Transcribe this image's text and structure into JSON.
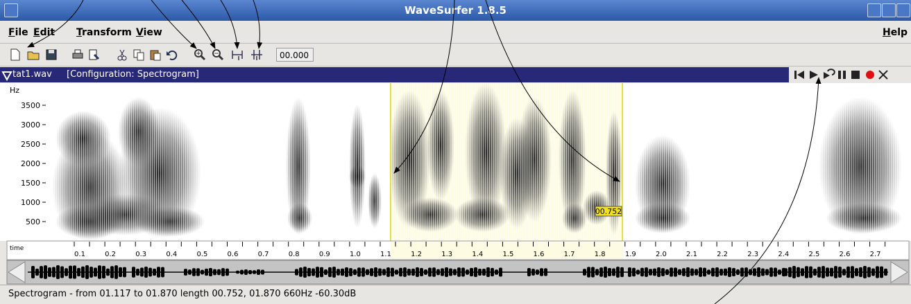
{
  "window": {
    "title": "WaveSurfer 1.8.5"
  },
  "menu": {
    "items": [
      "File",
      "Edit",
      "Transform",
      "View"
    ],
    "help": "Help"
  },
  "toolbar": {
    "time_field": "00.000"
  },
  "file_bar": {
    "file_name": "tat1.wav",
    "configuration": "[Configuration: Spectrogram]"
  },
  "spectrogram": {
    "unit": "Hz",
    "freq_labels": [
      "3500",
      "3000",
      "2500",
      "2000",
      "1500",
      "1000",
      "500"
    ],
    "selection_label": "00.752"
  },
  "time_axis": {
    "name": "time",
    "labels": [
      "0.1",
      "0.2",
      "0.3",
      "0.4",
      "0.5",
      "0.6",
      "0.7",
      "0.8",
      "0.9",
      "1.0",
      "1.1",
      "1.2",
      "1.3",
      "1.4",
      "1.5",
      "1.6",
      "1.7",
      "1.8",
      "1.9",
      "2.0",
      "2.1",
      "2.2",
      "2.3",
      "2.4",
      "2.5",
      "2.6",
      "2.7"
    ]
  },
  "status": "Spectrogram - from 01.117 to 01.870 length 00.752, 01.870 660Hz -60.30dB"
}
